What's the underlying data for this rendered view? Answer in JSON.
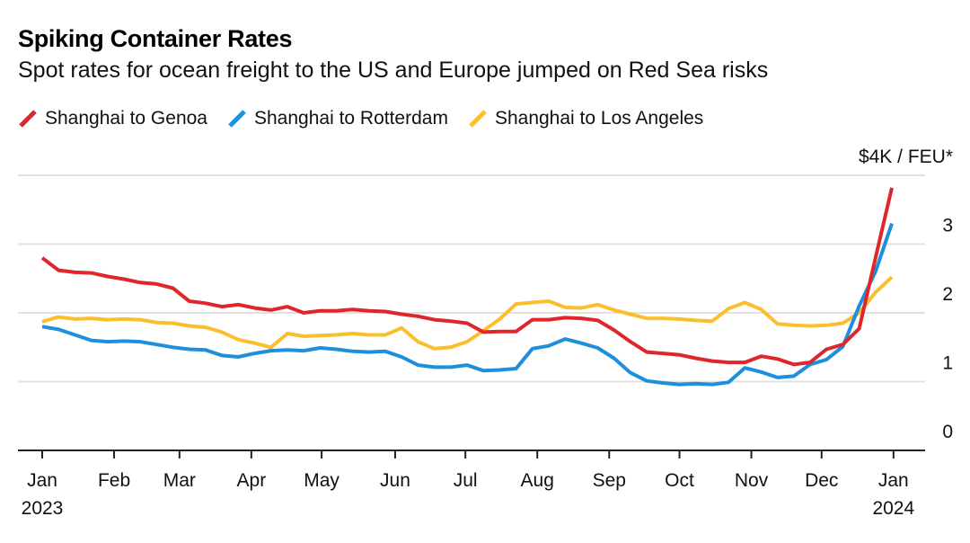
{
  "chart_data": {
    "type": "line",
    "title": "Spiking Container Rates",
    "subtitle": "Spot rates for ocean freight to the US and Europe jumped on Red Sea risks",
    "ylabel": "",
    "y_unit_label": "$4K / FEU*",
    "ylim": [
      0,
      4
    ],
    "yticks": [
      {
        "value": 0,
        "label": "0"
      },
      {
        "value": 1,
        "label": "1"
      },
      {
        "value": 2,
        "label": "2"
      },
      {
        "value": 3,
        "label": "3"
      }
    ],
    "xlim": [
      0,
      53
    ],
    "xticks": [
      {
        "x": 0.0,
        "label": "Jan",
        "sublabel": "2023"
      },
      {
        "x": 4.4,
        "label": "Feb",
        "sublabel": ""
      },
      {
        "x": 8.4,
        "label": "Mar",
        "sublabel": ""
      },
      {
        "x": 12.8,
        "label": "Apr",
        "sublabel": ""
      },
      {
        "x": 17.1,
        "label": "May",
        "sublabel": ""
      },
      {
        "x": 21.6,
        "label": "Jun",
        "sublabel": ""
      },
      {
        "x": 25.9,
        "label": "Jul",
        "sublabel": ""
      },
      {
        "x": 30.3,
        "label": "Aug",
        "sublabel": ""
      },
      {
        "x": 34.7,
        "label": "Sep",
        "sublabel": ""
      },
      {
        "x": 39.0,
        "label": "Oct",
        "sublabel": ""
      },
      {
        "x": 43.4,
        "label": "Nov",
        "sublabel": ""
      },
      {
        "x": 47.7,
        "label": "Dec",
        "sublabel": ""
      },
      {
        "x": 52.1,
        "label": "Jan",
        "sublabel": "2024"
      }
    ],
    "grid": true,
    "legend_position": "top-left",
    "series": [
      {
        "name": "Shanghai to Genoa",
        "color": "#e0262d",
        "x": [
          0,
          1,
          2,
          3,
          4,
          5,
          6,
          7,
          8,
          9,
          10,
          11,
          12,
          13,
          14,
          15,
          16,
          17,
          18,
          19,
          20,
          21,
          22,
          23,
          24,
          25,
          26,
          27,
          28,
          29,
          30,
          31,
          32,
          33,
          34,
          35,
          36,
          37,
          38,
          39,
          40,
          41,
          42,
          43,
          44,
          45,
          46,
          47,
          48,
          49,
          50,
          51,
          52
        ],
        "values": [
          2.8,
          2.62,
          2.59,
          2.58,
          2.53,
          2.49,
          2.44,
          2.42,
          2.36,
          2.17,
          2.14,
          2.09,
          2.12,
          2.07,
          2.04,
          2.09,
          2.0,
          2.03,
          2.03,
          2.05,
          2.03,
          2.02,
          1.98,
          1.95,
          1.9,
          1.88,
          1.85,
          1.72,
          1.73,
          1.73,
          1.9,
          1.9,
          1.93,
          1.92,
          1.89,
          1.75,
          1.58,
          1.43,
          1.41,
          1.39,
          1.34,
          1.3,
          1.28,
          1.28,
          1.37,
          1.33,
          1.25,
          1.28,
          1.47,
          1.54,
          1.77,
          2.8,
          3.82
        ]
      },
      {
        "name": "Shanghai to Rotterdam",
        "color": "#1e8fdc",
        "x": [
          0,
          1,
          2,
          3,
          4,
          5,
          6,
          7,
          8,
          9,
          10,
          11,
          12,
          13,
          14,
          15,
          16,
          17,
          18,
          19,
          20,
          21,
          22,
          23,
          24,
          25,
          26,
          27,
          28,
          29,
          30,
          31,
          32,
          33,
          34,
          35,
          36,
          37,
          38,
          39,
          40,
          41,
          42,
          43,
          44,
          45,
          46,
          47,
          48,
          49,
          50,
          51,
          52
        ],
        "values": [
          1.8,
          1.76,
          1.68,
          1.6,
          1.58,
          1.59,
          1.58,
          1.54,
          1.5,
          1.47,
          1.46,
          1.38,
          1.36,
          1.41,
          1.45,
          1.46,
          1.45,
          1.49,
          1.47,
          1.44,
          1.43,
          1.44,
          1.36,
          1.24,
          1.21,
          1.21,
          1.24,
          1.16,
          1.17,
          1.19,
          1.48,
          1.52,
          1.62,
          1.56,
          1.49,
          1.34,
          1.13,
          1.01,
          0.98,
          0.96,
          0.97,
          0.96,
          0.99,
          1.2,
          1.14,
          1.06,
          1.08,
          1.25,
          1.32,
          1.51,
          2.1,
          2.6,
          3.3
        ]
      },
      {
        "name": "Shanghai to Los Angeles",
        "color": "#fbbf2d",
        "x": [
          0,
          1,
          2,
          3,
          4,
          5,
          6,
          7,
          8,
          9,
          10,
          11,
          12,
          13,
          14,
          15,
          16,
          17,
          18,
          19,
          20,
          21,
          22,
          23,
          24,
          25,
          26,
          27,
          28,
          29,
          30,
          31,
          32,
          33,
          34,
          35,
          36,
          37,
          38,
          39,
          40,
          41,
          42,
          43,
          44,
          45,
          46,
          47,
          48,
          49,
          50,
          51,
          52
        ],
        "values": [
          1.87,
          1.94,
          1.91,
          1.92,
          1.9,
          1.91,
          1.9,
          1.86,
          1.85,
          1.81,
          1.79,
          1.72,
          1.61,
          1.56,
          1.5,
          1.7,
          1.66,
          1.67,
          1.68,
          1.7,
          1.68,
          1.68,
          1.78,
          1.58,
          1.48,
          1.5,
          1.58,
          1.74,
          1.91,
          2.13,
          2.15,
          2.17,
          2.08,
          2.07,
          2.12,
          2.04,
          1.98,
          1.92,
          1.92,
          1.91,
          1.89,
          1.88,
          2.06,
          2.15,
          2.05,
          1.84,
          1.82,
          1.81,
          1.82,
          1.85,
          2.0,
          2.3,
          2.52
        ]
      }
    ]
  }
}
